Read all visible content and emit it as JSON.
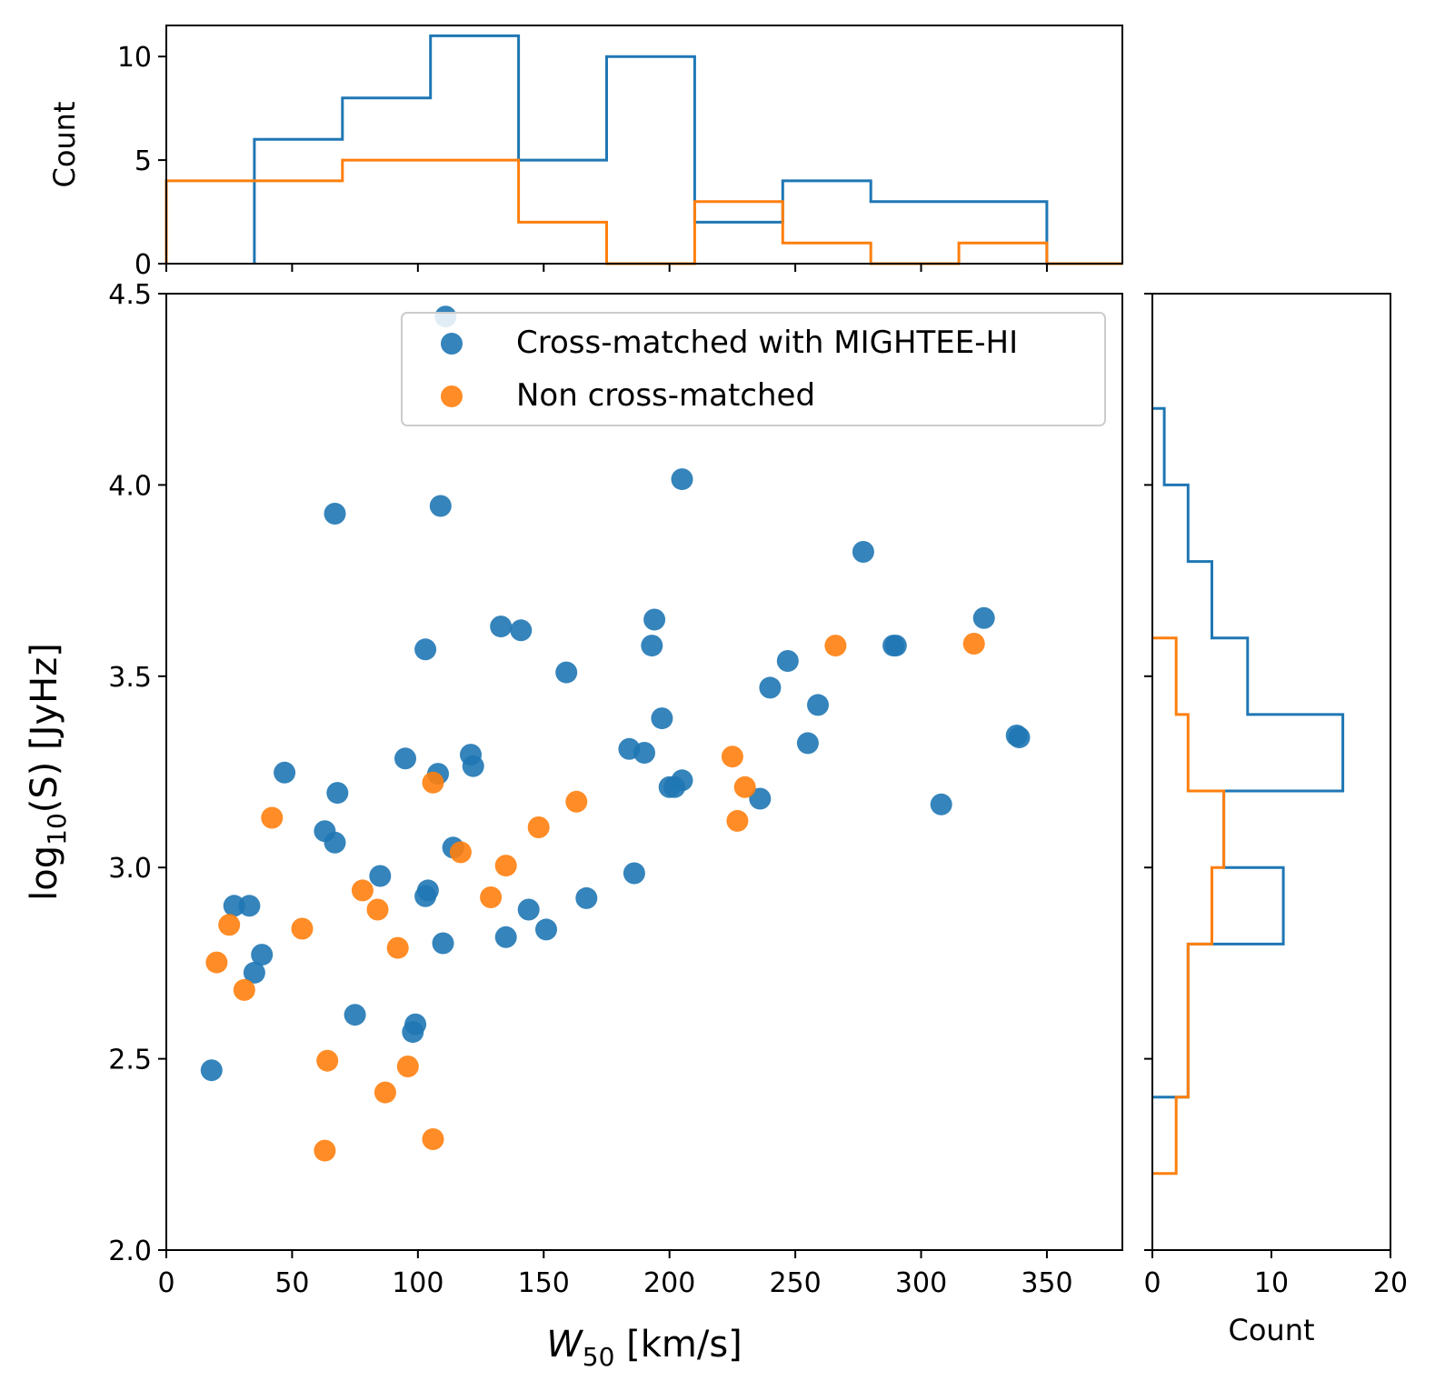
{
  "colors": {
    "cross": "#1f77b4",
    "non": "#ff7f0e"
  },
  "chart_data": [
    {
      "type": "scatter",
      "panel": "main",
      "xlabel_sym": "W",
      "xlabel_sub": "50",
      "xlabel_unit": "[km/s]",
      "ylabel_pre": "log",
      "ylabel_sub": "10",
      "ylabel_post": "(S) [JyHz]",
      "xlim": [
        0,
        380
      ],
      "ylim": [
        2.0,
        4.5
      ],
      "xticks": [
        "0",
        "50",
        "100",
        "150",
        "200",
        "250",
        "300",
        "350"
      ],
      "yticks": [
        "2.0",
        "2.5",
        "3.0",
        "3.5",
        "4.0",
        "4.5"
      ],
      "legend_position": "top-right",
      "series": [
        {
          "name": "Cross-matched with MIGHTEE-HI",
          "points": [
            [
              111,
              4.44
            ],
            [
              205,
              4.015
            ],
            [
              67,
              3.925
            ],
            [
              109,
              3.945
            ],
            [
              277,
              3.825
            ],
            [
              133,
              3.63
            ],
            [
              141,
              3.62
            ],
            [
              194,
              3.648
            ],
            [
              325,
              3.652
            ],
            [
              103,
              3.57
            ],
            [
              193,
              3.58
            ],
            [
              289,
              3.58
            ],
            [
              290,
              3.58
            ],
            [
              159,
              3.51
            ],
            [
              247,
              3.54
            ],
            [
              240,
              3.47
            ],
            [
              259,
              3.425
            ],
            [
              197,
              3.39
            ],
            [
              338,
              3.345
            ],
            [
              339,
              3.34
            ],
            [
              255,
              3.325
            ],
            [
              184,
              3.31
            ],
            [
              190,
              3.3
            ],
            [
              121,
              3.295
            ],
            [
              122,
              3.265
            ],
            [
              95,
              3.285
            ],
            [
              108,
              3.245
            ],
            [
              47,
              3.248
            ],
            [
              205,
              3.228
            ],
            [
              200,
              3.21
            ],
            [
              202,
              3.21
            ],
            [
              68,
              3.195
            ],
            [
              236,
              3.18
            ],
            [
              308,
              3.165
            ],
            [
              63,
              3.095
            ],
            [
              67,
              3.065
            ],
            [
              114,
              3.052
            ],
            [
              186,
              2.985
            ],
            [
              85,
              2.978
            ],
            [
              104,
              2.94
            ],
            [
              103,
              2.925
            ],
            [
              167,
              2.92
            ],
            [
              27,
              2.9
            ],
            [
              33,
              2.9
            ],
            [
              144,
              2.89
            ],
            [
              151,
              2.838
            ],
            [
              135,
              2.818
            ],
            [
              110,
              2.802
            ],
            [
              38,
              2.772
            ],
            [
              35,
              2.725
            ],
            [
              75,
              2.615
            ],
            [
              99,
              2.59
            ],
            [
              98,
              2.57
            ],
            [
              18,
              2.47
            ]
          ]
        },
        {
          "name": "Non cross-matched",
          "points": [
            [
              266,
              3.58
            ],
            [
              321,
              3.585
            ],
            [
              225,
              3.29
            ],
            [
              230,
              3.21
            ],
            [
              106,
              3.222
            ],
            [
              163,
              3.172
            ],
            [
              42,
              3.13
            ],
            [
              227,
              3.122
            ],
            [
              148,
              3.105
            ],
            [
              117,
              3.04
            ],
            [
              135,
              3.005
            ],
            [
              78,
              2.94
            ],
            [
              129,
              2.922
            ],
            [
              84,
              2.89
            ],
            [
              25,
              2.85
            ],
            [
              54,
              2.84
            ],
            [
              92,
              2.79
            ],
            [
              20,
              2.752
            ],
            [
              31,
              2.68
            ],
            [
              64,
              2.495
            ],
            [
              96,
              2.48
            ],
            [
              87,
              2.412
            ],
            [
              106,
              2.29
            ],
            [
              63,
              2.26
            ]
          ]
        }
      ]
    },
    {
      "type": "histogram",
      "panel": "top",
      "orientation": "vertical",
      "ylabel": "Count",
      "xlim": [
        0,
        380
      ],
      "ylim": [
        0,
        11.5
      ],
      "yticks": [
        "0",
        "5",
        "10"
      ],
      "series": [
        {
          "name": "Cross-matched with MIGHTEE-HI",
          "edges": [
            35,
            70,
            105,
            140,
            175,
            210,
            245,
            280,
            315,
            350
          ],
          "counts": [
            6,
            8,
            11,
            5,
            10,
            2,
            4,
            3,
            3
          ]
        },
        {
          "name": "Non cross-matched",
          "edges": [
            0,
            35,
            70,
            105,
            140,
            175,
            210,
            245,
            280,
            315,
            350
          ],
          "counts": [
            4,
            4,
            5,
            5,
            2,
            0,
            3,
            1,
            0,
            1
          ]
        }
      ]
    },
    {
      "type": "histogram",
      "panel": "right",
      "orientation": "horizontal",
      "xlabel": "Count",
      "xlim": [
        0,
        20
      ],
      "ylim": [
        2.0,
        4.5
      ],
      "xticks": [
        "0",
        "10",
        "20"
      ],
      "series": [
        {
          "name": "Cross-matched with MIGHTEE-HI",
          "edges": [
            2.4,
            2.8,
            3.0,
            3.2,
            3.4,
            3.6,
            3.8,
            4.0,
            4.2
          ],
          "counts": [
            3,
            11,
            6,
            16,
            8,
            5,
            3,
            1
          ]
        },
        {
          "name": "Non cross-matched",
          "edges": [
            2.2,
            2.4,
            2.8,
            3.0,
            3.2,
            3.4,
            3.6
          ],
          "counts": [
            2,
            3,
            5,
            6,
            3,
            2
          ]
        }
      ]
    }
  ]
}
